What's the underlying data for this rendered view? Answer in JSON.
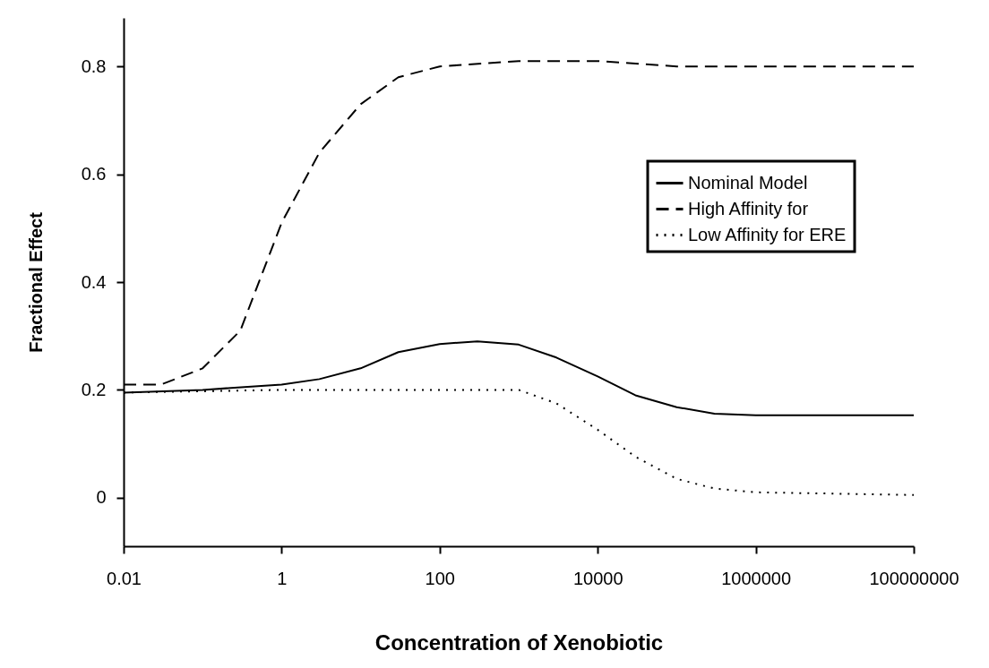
{
  "chart_data": {
    "type": "line",
    "xlabel": "Concentration of Xenobiotic",
    "ylabel": "Fractional  Effect",
    "log": "x",
    "xlim": [
      0.01,
      100000000
    ],
    "xticks": [
      0.01,
      1,
      100,
      10000,
      1000000,
      100000000
    ],
    "ylim": [
      -0.09,
      0.89
    ],
    "yticks": [
      0,
      0.2,
      0.4,
      0.6,
      0.8
    ],
    "grid": false,
    "legend": "top right",
    "marker": "none",
    "series": [
      {
        "name": "Nominal Model",
        "color": "#000000",
        "line_style": "solid",
        "x": [
          0.01,
          0.1,
          1,
          3,
          10,
          30,
          100,
          300,
          1000,
          3000,
          10000,
          30000,
          100000,
          300000,
          1000000,
          100000000
        ],
        "values": [
          0.195,
          0.2,
          0.21,
          0.22,
          0.24,
          0.27,
          0.285,
          0.29,
          0.284,
          0.26,
          0.225,
          0.19,
          0.168,
          0.156,
          0.153,
          0.153
        ]
      },
      {
        "name": "High Affinity for",
        "color": "#000000",
        "line_style": "dashed",
        "x": [
          0.01,
          0.03,
          0.1,
          0.3,
          1,
          3,
          10,
          30,
          100,
          1000,
          10000,
          100000,
          100000000
        ],
        "values": [
          0.21,
          0.21,
          0.24,
          0.31,
          0.51,
          0.64,
          0.73,
          0.78,
          0.8,
          0.81,
          0.81,
          0.8,
          0.8
        ]
      },
      {
        "name": "Low Affinity for ERE",
        "color": "#000000",
        "line_style": "dotted",
        "x": [
          0.01,
          1,
          100,
          1000,
          3000,
          10000,
          30000,
          100000,
          300000,
          1000000,
          100000000
        ],
        "values": [
          0.195,
          0.2,
          0.2,
          0.2,
          0.175,
          0.126,
          0.076,
          0.035,
          0.017,
          0.01,
          0.005
        ]
      }
    ]
  }
}
